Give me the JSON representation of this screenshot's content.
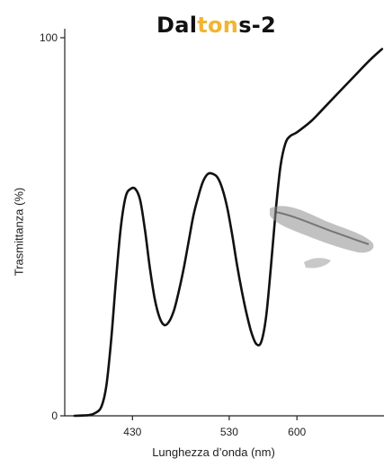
{
  "chart_data": {
    "type": "line",
    "title_parts": [
      {
        "text": "Dal",
        "color": "#111111"
      },
      {
        "text": "ton",
        "color": "#F2B531"
      },
      {
        "text": "s-2",
        "color": "#111111"
      }
    ],
    "xlabel": "Lunghezza d’onda (nm)",
    "ylabel": "Trasmittanza (%)",
    "xlim": [
      360,
      690
    ],
    "ylim": [
      0,
      100
    ],
    "x_ticks": [
      430,
      530,
      600
    ],
    "y_ticks": [
      0,
      100
    ],
    "grid": false,
    "series": [
      {
        "color": "#111111",
        "points": [
          [
            370,
            0
          ],
          [
            385,
            0.2
          ],
          [
            392,
            0.8
          ],
          [
            398,
            2.5
          ],
          [
            403,
            8
          ],
          [
            408,
            20
          ],
          [
            413,
            36
          ],
          [
            418,
            50
          ],
          [
            423,
            58
          ],
          [
            428,
            60
          ],
          [
            433,
            60
          ],
          [
            438,
            57
          ],
          [
            443,
            49
          ],
          [
            448,
            39
          ],
          [
            453,
            31
          ],
          [
            458,
            26
          ],
          [
            463,
            24
          ],
          [
            468,
            25
          ],
          [
            473,
            28
          ],
          [
            478,
            33
          ],
          [
            483,
            39
          ],
          [
            488,
            46
          ],
          [
            493,
            53
          ],
          [
            498,
            58
          ],
          [
            503,
            62
          ],
          [
            508,
            64
          ],
          [
            513,
            64
          ],
          [
            518,
            63
          ],
          [
            523,
            60
          ],
          [
            528,
            55
          ],
          [
            533,
            48
          ],
          [
            538,
            40
          ],
          [
            543,
            33
          ],
          [
            548,
            27
          ],
          [
            553,
            22
          ],
          [
            558,
            19
          ],
          [
            563,
            19.5
          ],
          [
            568,
            26
          ],
          [
            573,
            39
          ],
          [
            578,
            54
          ],
          [
            583,
            66
          ],
          [
            588,
            72
          ],
          [
            593,
            74
          ],
          [
            600,
            75
          ],
          [
            615,
            78
          ],
          [
            630,
            82
          ],
          [
            645,
            86
          ],
          [
            660,
            90
          ],
          [
            675,
            94
          ],
          [
            688,
            97
          ]
        ]
      }
    ]
  }
}
